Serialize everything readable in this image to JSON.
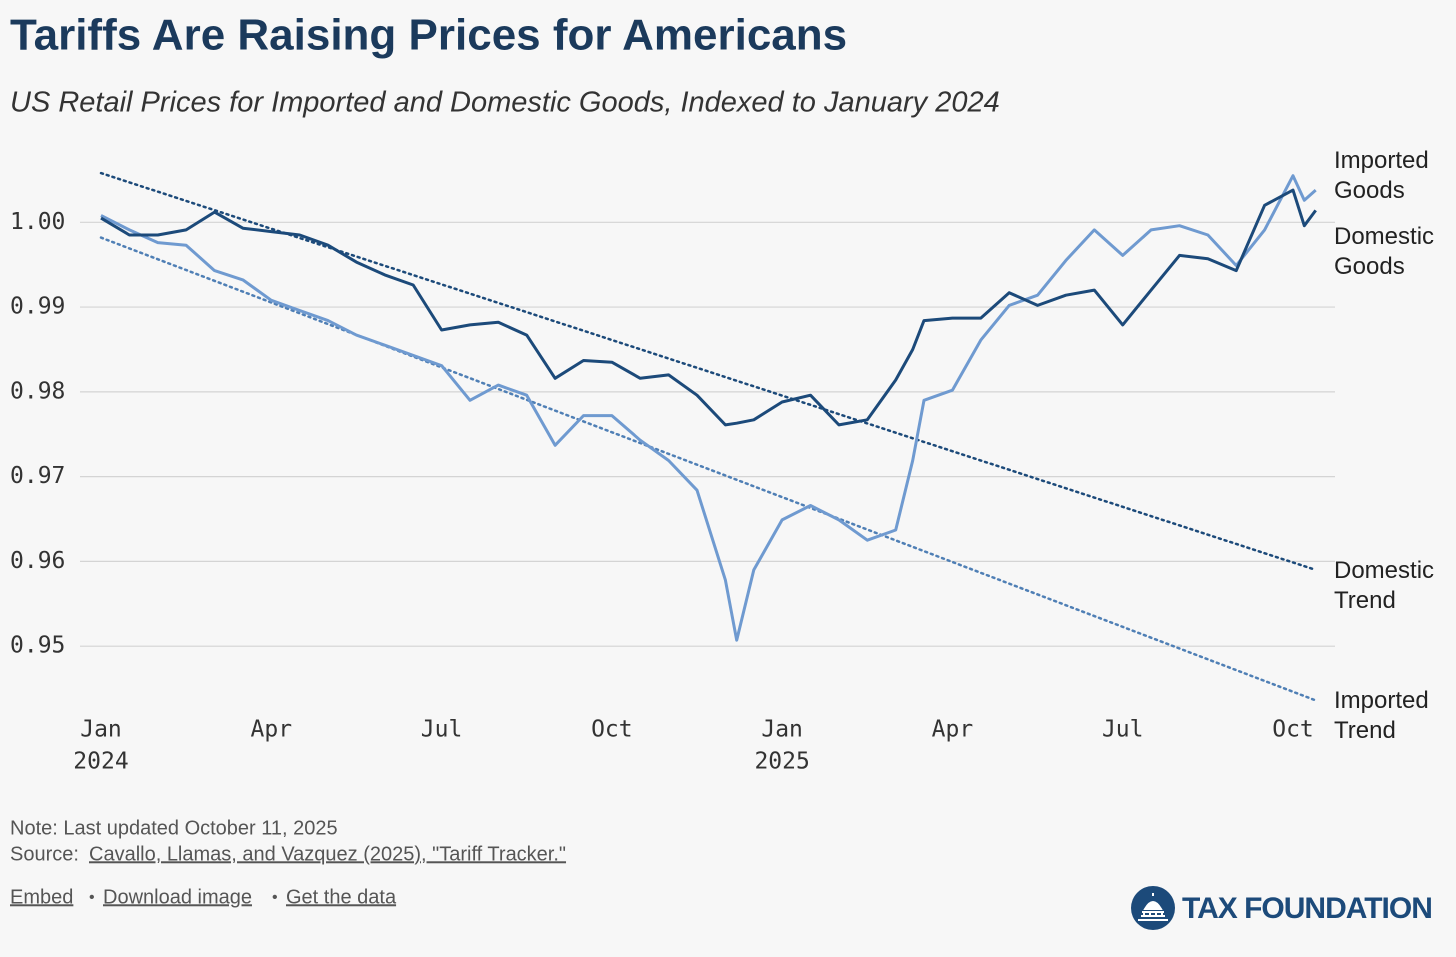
{
  "chart_data": {
    "type": "line",
    "title": "Tariffs Are Raising Prices for Americans",
    "subtitle": "US Retail Prices for Imported and Domestic Goods, Indexed to January 2024",
    "x": [
      0,
      0.5,
      1,
      1.5,
      2,
      2.5,
      3,
      3.5,
      4,
      4.5,
      5,
      5.5,
      6,
      6.5,
      7,
      7.5,
      8,
      8.5,
      9,
      9.5,
      10,
      10.5,
      11,
      11.2,
      11.5,
      12,
      12.5,
      13,
      13.5,
      14,
      14.3,
      14.5,
      15,
      15.5,
      16,
      16.5,
      17,
      17.5,
      18,
      18.5,
      19,
      19.5,
      20,
      20.5,
      21,
      21.2,
      21.4
    ],
    "series": [
      {
        "name": "Imported Goods",
        "color": "#6f9ad0",
        "dash": false,
        "values": [
          1.0008,
          0.9991,
          0.9976,
          0.9973,
          0.9943,
          0.9932,
          0.9908,
          0.9896,
          0.9884,
          0.9867,
          0.9855,
          0.9843,
          0.9831,
          0.979,
          0.9808,
          0.9796,
          0.9737,
          0.9772,
          0.9772,
          0.9743,
          0.9719,
          0.9684,
          0.9578,
          0.9507,
          0.959,
          0.9649,
          0.9666,
          0.9649,
          0.9625,
          0.9637,
          0.9719,
          0.979,
          0.9802,
          0.9861,
          0.9902,
          0.9914,
          0.9955,
          0.9991,
          0.9961,
          0.9991,
          0.9996,
          0.9985,
          0.9949,
          0.9991,
          1.0055,
          1.0026,
          1.0038
        ]
      },
      {
        "name": "Domestic Goods",
        "color": "#1c4a7a",
        "dash": false,
        "values": [
          1.0005,
          0.9985,
          0.9985,
          0.9991,
          1.0012,
          0.9993,
          0.9989,
          0.9985,
          0.9973,
          0.9953,
          0.9938,
          0.9926,
          0.9873,
          0.9879,
          0.9882,
          0.9867,
          0.9816,
          0.9837,
          0.9835,
          0.9816,
          0.982,
          0.9796,
          0.9761,
          0.9763,
          0.9767,
          0.9788,
          0.9796,
          0.9761,
          0.9767,
          0.9814,
          0.985,
          0.9884,
          0.9887,
          0.9887,
          0.9917,
          0.9902,
          0.9914,
          0.992,
          0.9879,
          0.992,
          0.9961,
          0.9957,
          0.9943,
          1.002,
          1.0038,
          0.9996,
          1.0014
        ]
      },
      {
        "name": "Domestic Trend",
        "color": "#1c4a7a",
        "dash": true,
        "x": [
          0,
          21.4
        ],
        "values": [
          1.0058,
          0.959
        ]
      },
      {
        "name": "Imported Trend",
        "color": "#4f7fb5",
        "dash": true,
        "x": [
          0,
          21.4
        ],
        "values": [
          0.9982,
          0.9436
        ]
      }
    ],
    "xlim": [
      -0.37,
      21.74
    ],
    "xticks": [
      {
        "value": 0,
        "label": "Jan"
      },
      {
        "value": 3,
        "label": "Apr"
      },
      {
        "value": 6,
        "label": "Jul"
      },
      {
        "value": 9,
        "label": "Oct"
      },
      {
        "value": 12,
        "label": "Jan"
      },
      {
        "value": 15,
        "label": "Apr"
      },
      {
        "value": 18,
        "label": "Jul"
      },
      {
        "value": 21,
        "label": "Oct"
      }
    ],
    "x_year_labels": [
      {
        "value": 0,
        "label": "2024"
      },
      {
        "value": 12,
        "label": "2025"
      }
    ],
    "ylim": [
      0.942,
      1.009
    ],
    "yticks": [
      0.95,
      0.96,
      0.97,
      0.98,
      0.99,
      {
        "value": 1,
        "label": "1.00"
      }
    ],
    "grid": true
  },
  "footer": {
    "note": "Note: Last updated October 11, 2025",
    "source_label": "Source:",
    "source_link": "Cavallo, Llamas, and Vazquez (2025), \"Tariff Tracker.\"",
    "links": [
      "Embed",
      "Download image",
      "Get the data"
    ],
    "separator": "•",
    "brand": "TAX FOUNDATION"
  }
}
